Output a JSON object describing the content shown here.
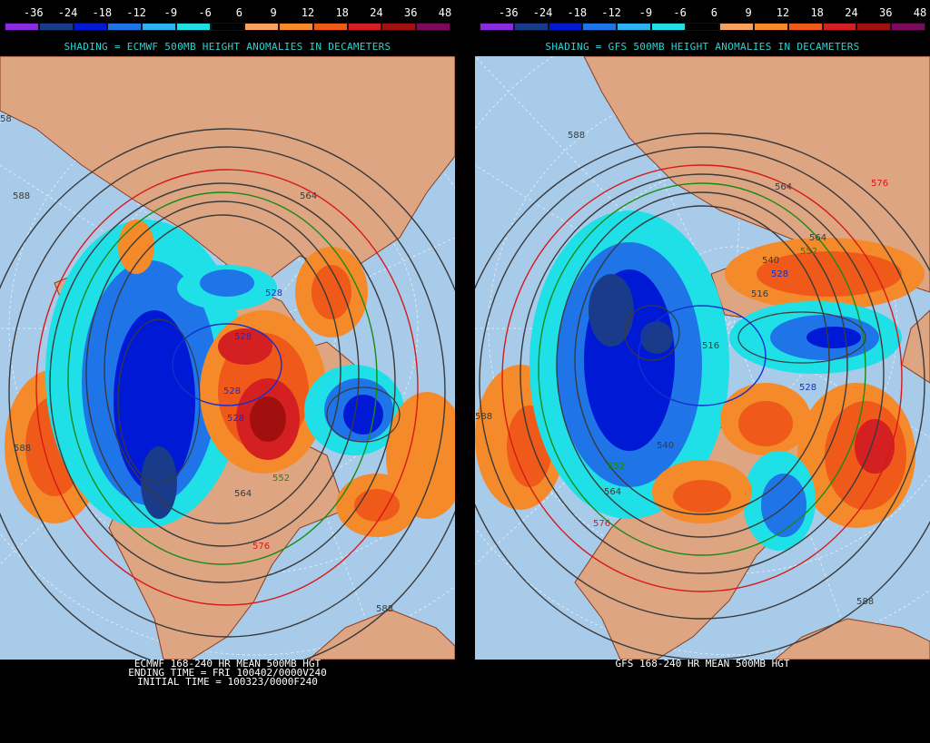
{
  "color_scale": [
    {
      "label": "-36",
      "color": "#8a2be2"
    },
    {
      "label": "-24",
      "color": "#1a3a8a"
    },
    {
      "label": "-18",
      "color": "#0019d4"
    },
    {
      "label": "-12",
      "color": "#1f74e8"
    },
    {
      "label": "-9",
      "color": "#2bb3f0"
    },
    {
      "label": "-6",
      "color": "#1ee0e6"
    },
    {
      "label": "6",
      "color": "#000000"
    },
    {
      "label": "9",
      "color": "#f6a25e"
    },
    {
      "label": "12",
      "color": "#f58a2a"
    },
    {
      "label": "18",
      "color": "#ef5a1a"
    },
    {
      "label": "24",
      "color": "#d42020"
    },
    {
      "label": "36",
      "color": "#a10f0f"
    },
    {
      "label": "48",
      "color": "#7a0a5a"
    }
  ],
  "colors": {
    "ocean": "#a8cbea",
    "land": "#dea583",
    "border": "#8a3d1e",
    "contour": "#3a3a3a",
    "contour_528": "#1230d0",
    "contour_552": "#178a17",
    "contour_576": "#d81818",
    "title_text": "#2fd0d0"
  },
  "left": {
    "shading_title": "SHADING = ECMWF 500MB HEIGHT ANOMALIES IN DECAMETERS",
    "footer": [
      "ECMWF 168-240 HR MEAN 500MB HGT",
      "ENDING TIME = FRI 100402/0000V240",
      "INITIAL TIME = 100323/0000F240"
    ],
    "contour_labels": [
      "528",
      "528",
      "528",
      "528",
      "552",
      "564",
      "564",
      "576",
      "588",
      "588",
      "588",
      "58"
    ]
  },
  "right": {
    "shading_title": "SHADING = GFS 500MB HEIGHT ANOMALIES IN DECAMETERS",
    "footer": [
      "GFS 168-240 HR MEAN 500MB HGT"
    ],
    "contour_labels": [
      "588",
      "564",
      "564",
      "552",
      "540",
      "528",
      "516",
      "516",
      "528",
      "576",
      "564",
      "540",
      "552",
      "576",
      "588",
      "588"
    ]
  }
}
